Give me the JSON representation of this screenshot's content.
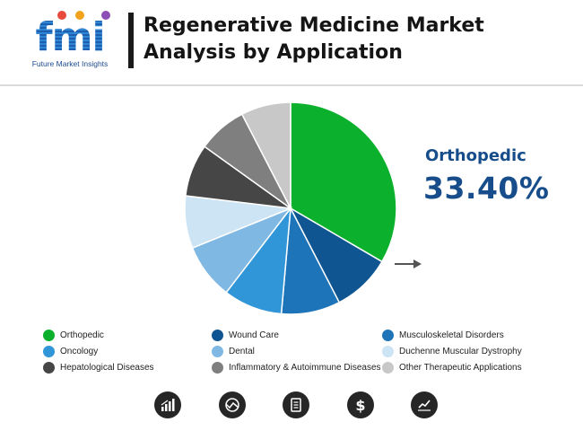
{
  "header": {
    "logo_text": "fmi",
    "logo_tagline": "Future Market Insights",
    "title_line1": "Regenerative Medicine Market",
    "title_line2": "Analysis by Application"
  },
  "callout": {
    "label": "Orthopedic",
    "value": "33.40%",
    "color": "#174d8a"
  },
  "chart_data": {
    "type": "pie",
    "title": "Regenerative Medicine Market Analysis by Application",
    "start_angle_deg": 0,
    "slices": [
      {
        "label": "Orthopedic",
        "value": 33.4,
        "color": "#0bb02c"
      },
      {
        "label": "Wound Care",
        "value": 9.0,
        "color": "#0e5591"
      },
      {
        "label": "Musculoskeletal Disorders",
        "value": 9.0,
        "color": "#1e74b8"
      },
      {
        "label": "Oncology",
        "value": 9.0,
        "color": "#3196d8"
      },
      {
        "label": "Dental",
        "value": 8.5,
        "color": "#7fb9e3"
      },
      {
        "label": "Duchenne Muscular Dystrophy",
        "value": 8.0,
        "color": "#cde4f5"
      },
      {
        "label": "Hepatological Diseases",
        "value": 8.0,
        "color": "#464646"
      },
      {
        "label": "Inflammatory & Autoimmune Diseases",
        "value": 7.5,
        "color": "#7f7f7f"
      },
      {
        "label": "Other Therapeutic Applications",
        "value": 7.6,
        "color": "#c8c8c8"
      }
    ],
    "legend_position": "bottom",
    "highlighted_slice": "Orthopedic"
  },
  "footer_icons": [
    "bar-chart-icon",
    "globe-trend-icon",
    "report-icon",
    "dollar-icon",
    "line-chart-icon"
  ],
  "logo_dot_colors": [
    "#e84a3c",
    "#f2a31b",
    "#8c4fb5"
  ]
}
